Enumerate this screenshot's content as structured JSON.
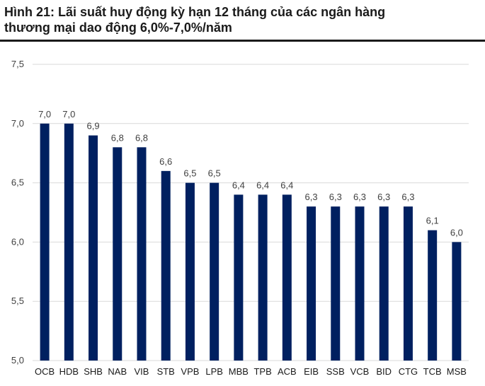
{
  "figure": {
    "title_line1": "Hình 21: Lãi suất huy động kỳ hạn 12 tháng của các ngân hàng",
    "title_line2": "thương mại dao động 6,0%-7,0%/năm"
  },
  "chart_data": {
    "type": "bar",
    "categories": [
      "OCB",
      "HDB",
      "SHB",
      "NAB",
      "VIB",
      "STB",
      "VPB",
      "LPB",
      "MBB",
      "TPB",
      "ACB",
      "EIB",
      "SSB",
      "VCB",
      "BID",
      "CTG",
      "TCB",
      "MSB"
    ],
    "values": [
      7.0,
      7.0,
      6.9,
      6.8,
      6.8,
      6.6,
      6.5,
      6.5,
      6.4,
      6.4,
      6.4,
      6.3,
      6.3,
      6.3,
      6.3,
      6.3,
      6.1,
      6.0
    ],
    "data_labels": [
      "7,0",
      "7,0",
      "6,9",
      "6,8",
      "6,8",
      "6,6",
      "6,5",
      "6,5",
      "6,4",
      "6,4",
      "6,4",
      "6,3",
      "6,3",
      "6,3",
      "6,3",
      "6,3",
      "6,1",
      "6,0"
    ],
    "y_ticks": [
      5.0,
      5.5,
      6.0,
      6.5,
      7.0,
      7.5
    ],
    "y_tick_labels": [
      "5,0",
      "5,5",
      "6,0",
      "6,5",
      "7,0",
      "7,5"
    ],
    "ylim": [
      5.0,
      7.5
    ],
    "grid": true,
    "bar_color": "#002060",
    "grid_color": "#d9d9d9"
  }
}
